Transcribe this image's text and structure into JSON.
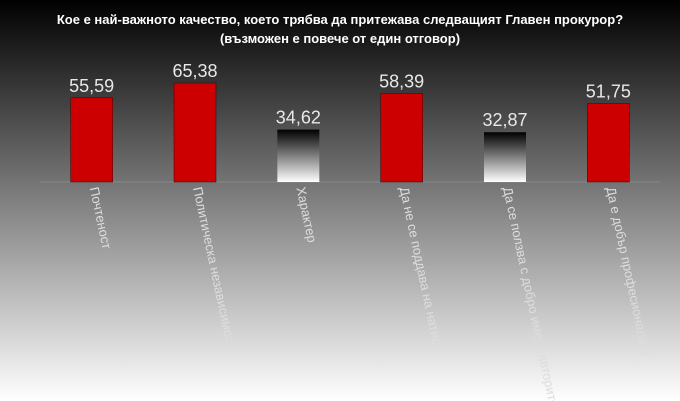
{
  "chart_data": {
    "type": "bar",
    "title": "Кое е най-важното качество, което трябва да притежава следващият Главен прокурор?",
    "subtitle": "(възможен е повече от един отговор)",
    "categories": [
      "Почтеност",
      "Политическа независимос",
      "Характер",
      "Да не се поддава на натиск",
      "Да се ползва с добро име и авторитет",
      "Да е добър професионалист"
    ],
    "values": [
      55.59,
      65.38,
      34.62,
      58.39,
      32.87,
      51.75
    ],
    "value_labels": [
      "55,59",
      "65,38",
      "34,62",
      "58,39",
      "32,87",
      "51,75"
    ],
    "colors": [
      "#cc0000",
      "#cc0000",
      "#000000",
      "#cc0000",
      "#000000",
      "#cc0000"
    ],
    "ylim": [
      0,
      70
    ]
  }
}
